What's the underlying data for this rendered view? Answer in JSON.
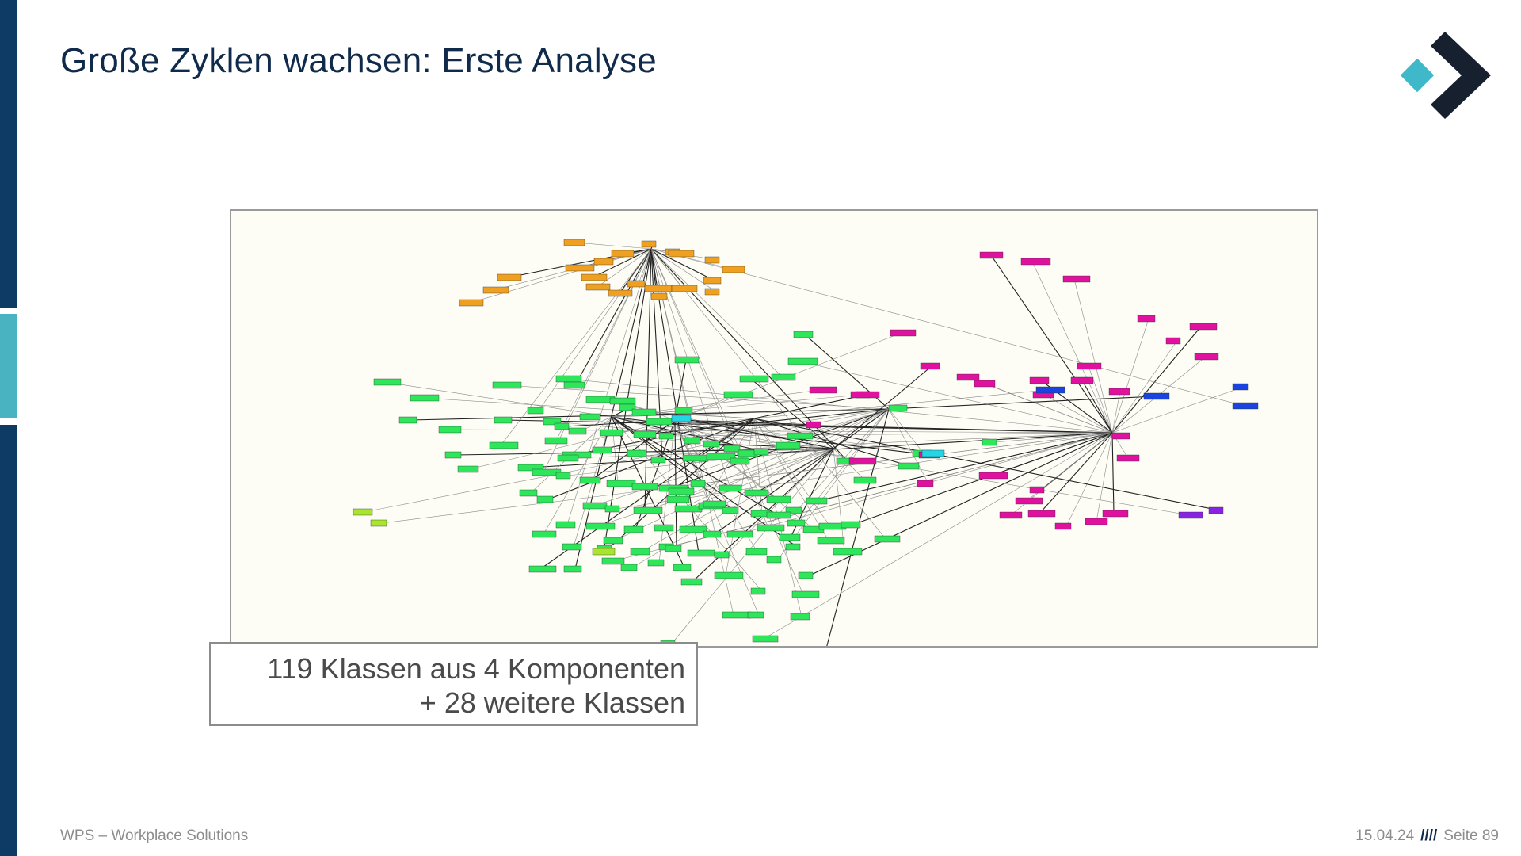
{
  "slide": {
    "title": "Große Zyklen wachsen: Erste Analyse",
    "caption_line1": "119 Klassen aus 4 Komponenten",
    "caption_line2": "+ 28 weitere Klassen",
    "footer_company": "WPS – Workplace Solutions",
    "footer_date": "15.04.24",
    "footer_separator": "////",
    "footer_page": "Seite 89"
  },
  "colors": {
    "bar_dark": "#0d3b66",
    "bar_light": "#4ab3c2",
    "logo_dark": "#16202e",
    "logo_accent": "#3fb8c9",
    "node_green": "#2ee65a",
    "node_magenta": "#e0119e",
    "node_orange": "#f0a020",
    "node_blue": "#1a44e0",
    "node_cyan": "#22d6e6",
    "node_purple": "#8a22e6",
    "node_lime": "#a8e62e",
    "graph_background": "#fdfdf6"
  },
  "icons": {
    "logo": "wps-chevron-logo"
  }
}
